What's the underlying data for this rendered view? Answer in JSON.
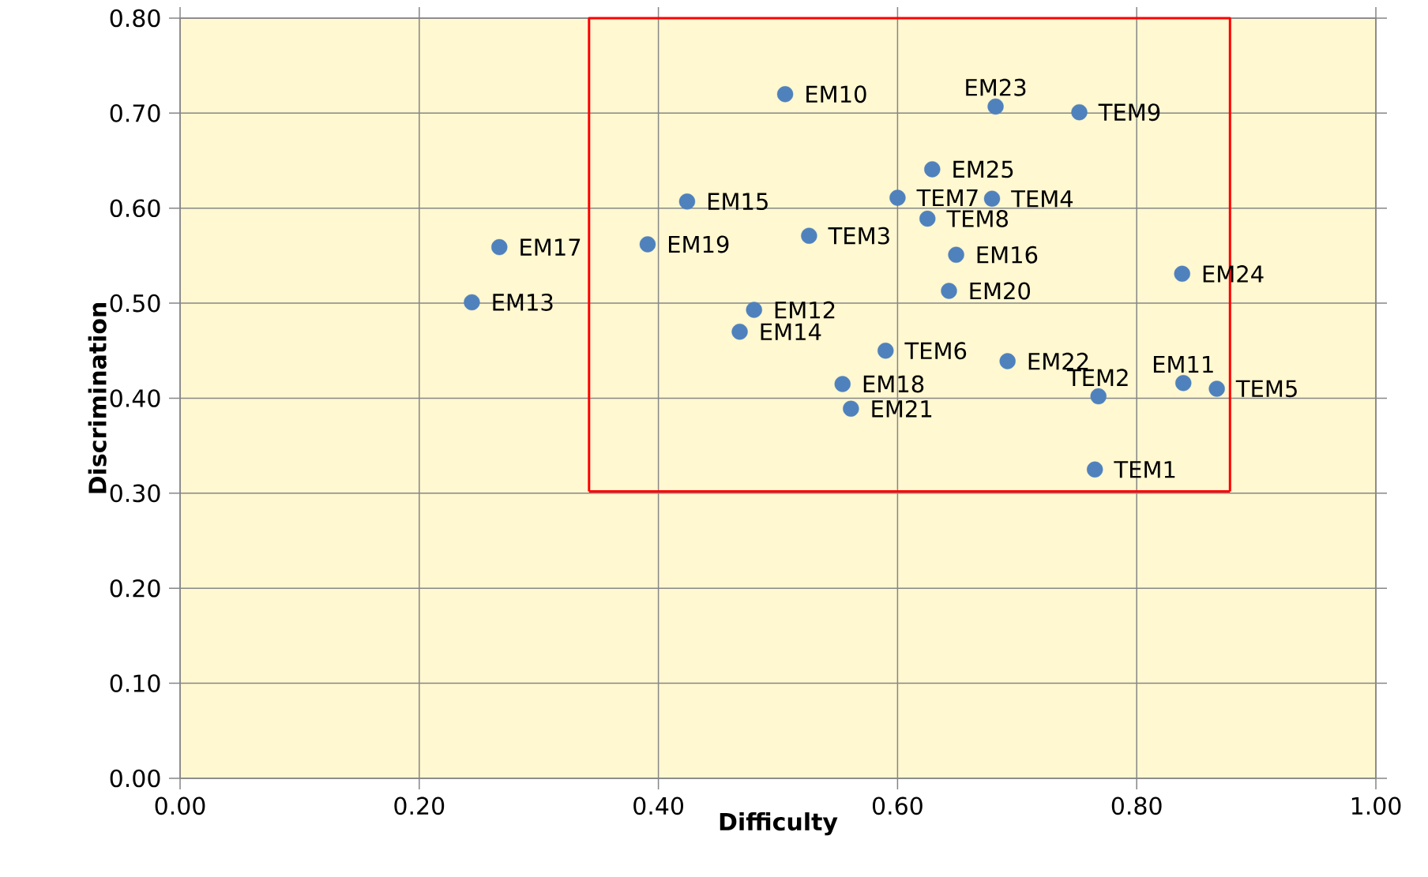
{
  "chart_data": {
    "type": "scatter",
    "xlabel": "Difficulty",
    "ylabel": "Discrimination",
    "xlim": [
      0,
      1
    ],
    "ylim": [
      0,
      0.8
    ],
    "xticks": [
      {
        "value": 0,
        "label": "0.00"
      },
      {
        "value": 0.2,
        "label": "0.20"
      },
      {
        "value": 0.4,
        "label": "0.40"
      },
      {
        "value": 0.6,
        "label": "0.60"
      },
      {
        "value": 0.8,
        "label": "0.80"
      },
      {
        "value": 1,
        "label": "1.00"
      }
    ],
    "yticks": [
      {
        "value": 0,
        "label": "0.00"
      },
      {
        "value": 0.1,
        "label": "0.10"
      },
      {
        "value": 0.2,
        "label": "0.20"
      },
      {
        "value": 0.3,
        "label": "0.30"
      },
      {
        "value": 0.4,
        "label": "0.40"
      },
      {
        "value": 0.5,
        "label": "0.50"
      },
      {
        "value": 0.6,
        "label": "0.60"
      },
      {
        "value": 0.7,
        "label": "0.70"
      },
      {
        "value": 0.8,
        "label": "0.80"
      }
    ],
    "grid": true,
    "series": [
      {
        "marker": "circle",
        "color": "#4f81bd",
        "x": [
          0.506,
          0.682,
          0.752,
          0.629,
          0.6,
          0.679,
          0.625,
          0.424,
          0.526,
          0.649,
          0.267,
          0.391,
          0.838,
          0.643,
          0.244,
          0.48,
          0.468,
          0.59,
          0.692,
          0.554,
          0.561,
          0.768,
          0.839,
          0.867,
          0.765
        ],
        "values": [
          0.72,
          0.707,
          0.701,
          0.641,
          0.611,
          0.61,
          0.589,
          0.607,
          0.571,
          0.551,
          0.559,
          0.562,
          0.531,
          0.513,
          0.501,
          0.493,
          0.47,
          0.45,
          0.439,
          0.415,
          0.389,
          0.402,
          0.416,
          0.41,
          0.325
        ]
      },
      {
        "type": "line",
        "marker": "none",
        "color": "#ff0000",
        "line_style": "solid",
        "x": [
          0.342,
          0.342,
          0.878,
          0.878
        ],
        "values": [
          0.302,
          0.8,
          0.8,
          0.302
        ]
      },
      {
        "type": "line",
        "marker": "none",
        "color": "#ff0000",
        "line_style": "solid",
        "x": [
          0.342,
          0.878
        ],
        "values": [
          0.302,
          0.302
        ]
      }
    ],
    "annotations": [
      {
        "text": "EM10",
        "x": 0.506,
        "y": 0.72
      },
      {
        "text": "EM23",
        "x": 0.682,
        "y": 0.707
      },
      {
        "text": "TEM9",
        "x": 0.752,
        "y": 0.701
      },
      {
        "text": "EM25",
        "x": 0.629,
        "y": 0.641
      },
      {
        "text": "TEM7",
        "x": 0.6,
        "y": 0.611
      },
      {
        "text": "TEM4",
        "x": 0.679,
        "y": 0.61
      },
      {
        "text": "TEM8",
        "x": 0.625,
        "y": 0.589
      },
      {
        "text": "EM15",
        "x": 0.424,
        "y": 0.607
      },
      {
        "text": "TEM3",
        "x": 0.526,
        "y": 0.571
      },
      {
        "text": "EM16",
        "x": 0.649,
        "y": 0.551
      },
      {
        "text": "EM17",
        "x": 0.267,
        "y": 0.559
      },
      {
        "text": "EM19",
        "x": 0.391,
        "y": 0.562
      },
      {
        "text": "EM24",
        "x": 0.838,
        "y": 0.531
      },
      {
        "text": "EM20",
        "x": 0.643,
        "y": 0.513
      },
      {
        "text": "EM13",
        "x": 0.244,
        "y": 0.501
      },
      {
        "text": "EM12",
        "x": 0.48,
        "y": 0.493
      },
      {
        "text": "EM14",
        "x": 0.468,
        "y": 0.47
      },
      {
        "text": "TEM6",
        "x": 0.59,
        "y": 0.45
      },
      {
        "text": "EM22",
        "x": 0.692,
        "y": 0.439
      },
      {
        "text": "EM18",
        "x": 0.554,
        "y": 0.415
      },
      {
        "text": "EM21",
        "x": 0.561,
        "y": 0.389
      },
      {
        "text": "TEM2",
        "x": 0.768,
        "y": 0.402
      },
      {
        "text": "EM11",
        "x": 0.839,
        "y": 0.416
      },
      {
        "text": "TEM5",
        "x": 0.867,
        "y": 0.41
      },
      {
        "text": "TEM1",
        "x": 0.765,
        "y": 0.325
      }
    ]
  }
}
